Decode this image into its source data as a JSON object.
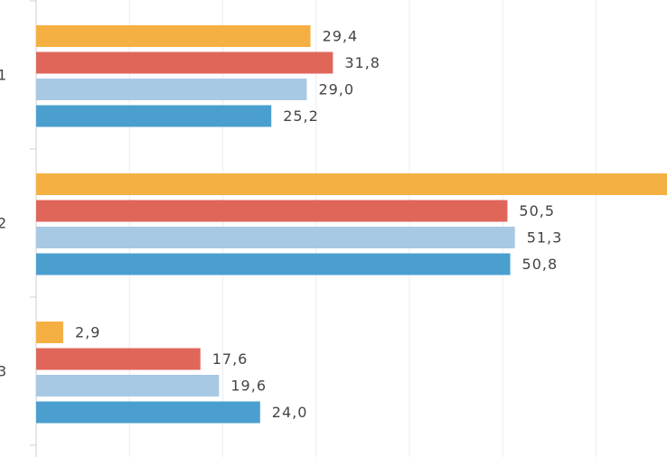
{
  "chart_data": {
    "type": "bar",
    "orientation": "horizontal",
    "categories": [
      "1",
      "2",
      "3"
    ],
    "series": [
      {
        "color": "#f5b043",
        "values": [
          29.4,
          70,
          2.9
        ],
        "value_labels": [
          "29,4",
          null,
          "2,9"
        ]
      },
      {
        "color": "#e0665a",
        "values": [
          31.8,
          50.5,
          17.6
        ],
        "value_labels": [
          "31,8",
          "50,5",
          "17,6"
        ]
      },
      {
        "color": "#a8c9e4",
        "values": [
          29.0,
          51.3,
          19.6
        ],
        "value_labels": [
          "29,0",
          "51,3",
          "19,6"
        ]
      },
      {
        "color": "#4a9fcf",
        "values": [
          25.2,
          50.8,
          24.0
        ],
        "value_labels": [
          "25,2",
          "50,8",
          "24,0"
        ]
      }
    ],
    "xlim": [
      0,
      67.6
    ],
    "xticks": [
      0,
      10,
      20,
      30,
      40,
      50,
      60
    ],
    "grid": true
  }
}
